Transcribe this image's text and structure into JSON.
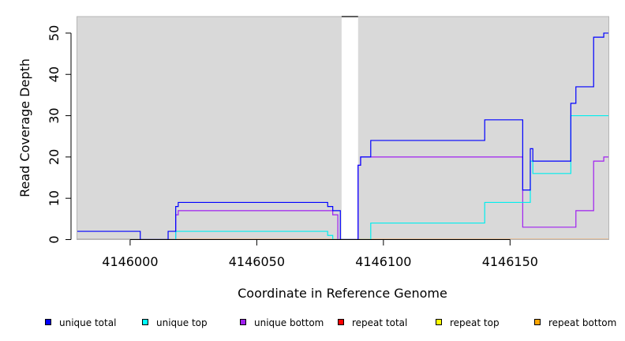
{
  "chart_data": {
    "type": "line",
    "xlabel": "Coordinate in Reference Genome",
    "ylabel": "Read Coverage Depth",
    "xlim": [
      4145979,
      4146189
    ],
    "ylim": [
      0,
      54
    ],
    "x_ticks": [
      4146000,
      4146050,
      4146100,
      4146150
    ],
    "y_ticks": [
      0,
      10,
      20,
      30,
      40,
      50
    ],
    "background": "#d9d9d9",
    "gap_band": {
      "from": 4146083.5,
      "to": 4146090
    },
    "series": [
      {
        "name": "unique total",
        "color": "#0000ff",
        "points": [
          [
            4145979,
            2
          ],
          [
            4146004,
            2
          ],
          [
            4146004,
            0
          ],
          [
            4146015,
            0
          ],
          [
            4146015,
            2
          ],
          [
            4146018,
            2
          ],
          [
            4146018,
            8
          ],
          [
            4146019,
            8
          ],
          [
            4146019,
            9
          ],
          [
            4146078,
            9
          ],
          [
            4146078,
            8
          ],
          [
            4146080,
            8
          ],
          [
            4146080,
            7
          ],
          [
            4146083,
            7
          ],
          [
            4146083,
            0
          ],
          [
            4146090,
            0
          ],
          [
            4146090,
            18
          ],
          [
            4146091,
            18
          ],
          [
            4146091,
            20
          ],
          [
            4146095,
            20
          ],
          [
            4146095,
            24
          ],
          [
            4146140,
            24
          ],
          [
            4146140,
            29
          ],
          [
            4146155,
            29
          ],
          [
            4146155,
            12
          ],
          [
            4146158,
            12
          ],
          [
            4146158,
            22
          ],
          [
            4146159,
            22
          ],
          [
            4146159,
            19
          ],
          [
            4146174,
            19
          ],
          [
            4146174,
            33
          ],
          [
            4146176,
            33
          ],
          [
            4146176,
            37
          ],
          [
            4146183,
            37
          ],
          [
            4146183,
            49
          ],
          [
            4146187,
            49
          ],
          [
            4146187,
            50
          ],
          [
            4146189,
            50
          ]
        ]
      },
      {
        "name": "unique top",
        "color": "#00eeee",
        "points": [
          [
            4145979,
            0
          ],
          [
            4146018,
            0
          ],
          [
            4146018,
            2
          ],
          [
            4146078,
            2
          ],
          [
            4146078,
            1
          ],
          [
            4146080,
            1
          ],
          [
            4146080,
            0
          ],
          [
            4146095,
            0
          ],
          [
            4146095,
            4
          ],
          [
            4146140,
            4
          ],
          [
            4146140,
            9
          ],
          [
            4146158,
            9
          ],
          [
            4146158,
            19
          ],
          [
            4146159,
            19
          ],
          [
            4146159,
            16
          ],
          [
            4146174,
            16
          ],
          [
            4146174,
            30
          ],
          [
            4146189,
            30
          ]
        ]
      },
      {
        "name": "unique bottom",
        "color": "#a020f0",
        "points": [
          [
            4145979,
            0
          ],
          [
            4146018,
            0
          ],
          [
            4146018,
            6
          ],
          [
            4146019,
            6
          ],
          [
            4146019,
            7
          ],
          [
            4146080,
            7
          ],
          [
            4146080,
            6
          ],
          [
            4146082,
            6
          ],
          [
            4146082,
            0
          ],
          [
            4146090,
            0
          ],
          [
            4146090,
            18
          ],
          [
            4146091,
            18
          ],
          [
            4146091,
            20
          ],
          [
            4146155,
            20
          ],
          [
            4146155,
            3
          ],
          [
            4146176,
            3
          ],
          [
            4146176,
            7
          ],
          [
            4146183,
            7
          ],
          [
            4146183,
            19
          ],
          [
            4146187,
            19
          ],
          [
            4146187,
            20
          ],
          [
            4146189,
            20
          ]
        ]
      },
      {
        "name": "repeat total",
        "color": "#ff0000",
        "points": [
          [
            4145979,
            0
          ],
          [
            4146189,
            0
          ]
        ]
      },
      {
        "name": "repeat top",
        "color": "#ffff00",
        "points": [
          [
            4145979,
            0
          ],
          [
            4146189,
            0
          ]
        ]
      },
      {
        "name": "repeat bottom",
        "color": "#ffa500",
        "points": [
          [
            4145979,
            0
          ],
          [
            4146189,
            0
          ]
        ]
      }
    ],
    "legend": [
      {
        "label": "unique total",
        "color": "#0000ff"
      },
      {
        "label": "unique top",
        "color": "#00ffff"
      },
      {
        "label": "unique bottom",
        "color": "#a020f0"
      },
      {
        "label": "repeat total",
        "color": "#ff0000"
      },
      {
        "label": "repeat top",
        "color": "#ffff00"
      },
      {
        "label": "repeat bottom",
        "color": "#ffa500"
      }
    ],
    "legend_position": "bottom"
  }
}
